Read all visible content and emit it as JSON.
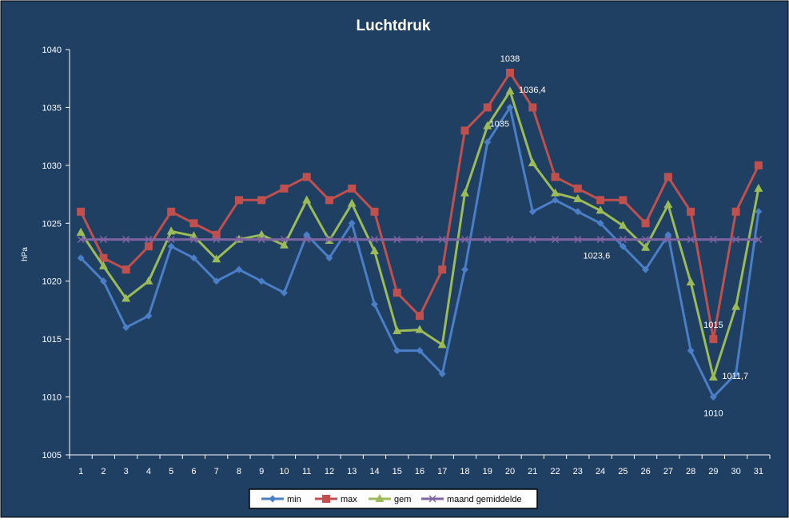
{
  "chart_data": {
    "type": "line",
    "title": "Luchtdruk",
    "xlabel": "",
    "ylabel": "hPa",
    "ylim": [
      1005,
      1040
    ],
    "yticks": [
      1005,
      1010,
      1015,
      1020,
      1025,
      1030,
      1035,
      1040
    ],
    "grid": false,
    "legend_position": "bottom",
    "categories": [
      "1",
      "2",
      "3",
      "4",
      "5",
      "6",
      "7",
      "8",
      "9",
      "10",
      "11",
      "12",
      "13",
      "14",
      "15",
      "16",
      "17",
      "18",
      "19",
      "20",
      "21",
      "22",
      "23",
      "24",
      "25",
      "26",
      "27",
      "28",
      "29",
      "30",
      "31"
    ],
    "series": [
      {
        "name": "min",
        "color": "#4a7ec6",
        "marker": "diamond",
        "values": [
          1022,
          1020,
          1016,
          1017,
          1023,
          1022,
          1020,
          1021,
          1020,
          1019,
          1024,
          1022,
          1025,
          1018,
          1014,
          1014,
          1012,
          1021,
          1032,
          1035,
          1026,
          1027,
          1026,
          1025,
          1023,
          1021,
          1024,
          1014,
          1010,
          1012,
          1026
        ]
      },
      {
        "name": "max",
        "color": "#c0504d",
        "marker": "square",
        "values": [
          1026,
          1022,
          1021,
          1023,
          1026,
          1025,
          1024,
          1027,
          1027,
          1028,
          1029,
          1027,
          1028,
          1026,
          1019,
          1017,
          1021,
          1033,
          1035,
          1038,
          1035,
          1029,
          1028,
          1027,
          1027,
          1025,
          1029,
          1026,
          1015,
          1026,
          1030
        ]
      },
      {
        "name": "gem",
        "color": "#9bbb59",
        "marker": "triangle",
        "values": [
          1024.2,
          1021.3,
          1018.5,
          1020,
          1024.3,
          1023.9,
          1021.9,
          1023.6,
          1024,
          1023.1,
          1027,
          1023.5,
          1026.7,
          1022.6,
          1015.7,
          1015.8,
          1014.5,
          1027.6,
          1033.4,
          1036.4,
          1030.2,
          1027.6,
          1027.1,
          1026.1,
          1024.8,
          1022.9,
          1026.6,
          1019.9,
          1011.7,
          1017.8,
          1028
        ]
      },
      {
        "name": "maand gemiddelde",
        "color": "#8064a2",
        "marker": "x",
        "values": [
          1023.6,
          1023.6,
          1023.6,
          1023.6,
          1023.6,
          1023.6,
          1023.6,
          1023.6,
          1023.6,
          1023.6,
          1023.6,
          1023.6,
          1023.6,
          1023.6,
          1023.6,
          1023.6,
          1023.6,
          1023.6,
          1023.6,
          1023.6,
          1023.6,
          1023.6,
          1023.6,
          1023.6,
          1023.6,
          1023.6,
          1023.6,
          1023.6,
          1023.6,
          1023.6,
          1023.6
        ]
      }
    ],
    "annotations": [
      {
        "series": "max",
        "index": 19,
        "text": "1038",
        "anchor": "above"
      },
      {
        "series": "gem",
        "index": 19,
        "text": "1036,4",
        "anchor": "right"
      },
      {
        "series": "min",
        "index": 19,
        "text": "1035",
        "anchor": "below-left"
      },
      {
        "series": "maand gemiddelde",
        "index": 21,
        "text": "1023,6",
        "anchor": "below-right"
      },
      {
        "series": "max",
        "index": 28,
        "text": "1015",
        "anchor": "above"
      },
      {
        "series": "gem",
        "index": 28,
        "text": "1011,7",
        "anchor": "right"
      },
      {
        "series": "min",
        "index": 28,
        "text": "1010",
        "anchor": "below"
      }
    ],
    "colors": {
      "background": "#1f3f63",
      "axis": "#ffffff",
      "text": "#ffffff",
      "legend_background": "#ffffff",
      "legend_border": "#000000",
      "legend_text": "#000000"
    }
  }
}
